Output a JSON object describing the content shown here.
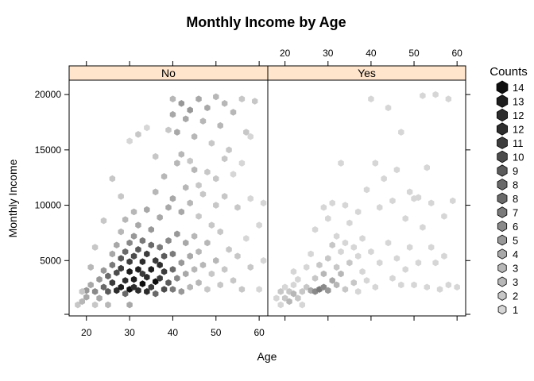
{
  "chart_data": {
    "type": "heatmap",
    "subtype": "hexbin",
    "title": "Monthly Income by Age",
    "xlabel": "Age",
    "ylabel": "Monthly Income",
    "xlim": [
      16,
      62
    ],
    "ylim": [
      0,
      21300
    ],
    "x_ticks": [
      20,
      30,
      40,
      50,
      60
    ],
    "y_ticks": [
      5000,
      10000,
      15000,
      20000
    ],
    "x_tick_labels": [
      "20",
      "30",
      "40",
      "50",
      "60"
    ],
    "y_tick_labels": [
      "5000",
      "10000",
      "15000",
      "20000"
    ],
    "panels": [
      {
        "name": "No",
        "bins": [
          [
            18,
            1000,
            2
          ],
          [
            19,
            1300,
            3
          ],
          [
            20,
            1700,
            4
          ],
          [
            20,
            2300,
            5
          ],
          [
            21,
            2800,
            4
          ],
          [
            22,
            1000,
            2
          ],
          [
            22,
            2200,
            6
          ],
          [
            23,
            3300,
            5
          ],
          [
            23,
            1600,
            4
          ],
          [
            24,
            2600,
            8
          ],
          [
            24,
            4100,
            5
          ],
          [
            25,
            2200,
            9
          ],
          [
            25,
            3600,
            8
          ],
          [
            25,
            1000,
            3
          ],
          [
            26,
            4600,
            7
          ],
          [
            26,
            3000,
            11
          ],
          [
            26,
            5600,
            4
          ],
          [
            27,
            2300,
            12
          ],
          [
            27,
            3900,
            10
          ],
          [
            27,
            6400,
            4
          ],
          [
            28,
            2600,
            13
          ],
          [
            28,
            4300,
            11
          ],
          [
            28,
            5200,
            9
          ],
          [
            28,
            7600,
            3
          ],
          [
            29,
            3200,
            12
          ],
          [
            29,
            2000,
            8
          ],
          [
            29,
            5800,
            8
          ],
          [
            29,
            8700,
            3
          ],
          [
            30,
            2400,
            14
          ],
          [
            30,
            4000,
            13
          ],
          [
            30,
            4900,
            11
          ],
          [
            30,
            6600,
            6
          ],
          [
            30,
            1000,
            4
          ],
          [
            31,
            3300,
            13
          ],
          [
            31,
            2600,
            12
          ],
          [
            31,
            5400,
            10
          ],
          [
            31,
            7200,
            5
          ],
          [
            31,
            9400,
            3
          ],
          [
            32,
            4200,
            13
          ],
          [
            32,
            2300,
            12
          ],
          [
            32,
            6000,
            9
          ],
          [
            32,
            8200,
            4
          ],
          [
            33,
            2900,
            14
          ],
          [
            33,
            4900,
            12
          ],
          [
            33,
            3800,
            11
          ],
          [
            33,
            6800,
            7
          ],
          [
            34,
            2200,
            12
          ],
          [
            34,
            5600,
            11
          ],
          [
            34,
            3500,
            12
          ],
          [
            34,
            9600,
            4
          ],
          [
            35,
            4200,
            13
          ],
          [
            35,
            2600,
            11
          ],
          [
            35,
            6400,
            8
          ],
          [
            35,
            7800,
            5
          ],
          [
            36,
            3100,
            14
          ],
          [
            36,
            5000,
            11
          ],
          [
            36,
            2000,
            8
          ],
          [
            36,
            11200,
            3
          ],
          [
            37,
            4600,
            12
          ],
          [
            37,
            3400,
            11
          ],
          [
            37,
            6200,
            7
          ],
          [
            37,
            8900,
            4
          ],
          [
            38,
            2400,
            10
          ],
          [
            38,
            4000,
            11
          ],
          [
            38,
            5400,
            9
          ],
          [
            38,
            12600,
            3
          ],
          [
            39,
            3000,
            9
          ],
          [
            39,
            6800,
            6
          ],
          [
            39,
            9800,
            4
          ],
          [
            40,
            4200,
            8
          ],
          [
            40,
            2400,
            7
          ],
          [
            40,
            5600,
            7
          ],
          [
            40,
            10600,
            4
          ],
          [
            40,
            18200,
            4
          ],
          [
            40,
            19600,
            3
          ],
          [
            41,
            3400,
            6
          ],
          [
            41,
            7400,
            5
          ],
          [
            41,
            16600,
            4
          ],
          [
            41,
            13800,
            3
          ],
          [
            42,
            4800,
            5
          ],
          [
            42,
            2200,
            5
          ],
          [
            42,
            9400,
            4
          ],
          [
            42,
            19200,
            5
          ],
          [
            43,
            3800,
            4
          ],
          [
            43,
            6600,
            4
          ],
          [
            43,
            17800,
            4
          ],
          [
            43,
            11600,
            3
          ],
          [
            44,
            2600,
            3
          ],
          [
            44,
            5400,
            4
          ],
          [
            44,
            10200,
            3
          ],
          [
            44,
            18600,
            5
          ],
          [
            45,
            4200,
            3
          ],
          [
            45,
            7200,
            3
          ],
          [
            45,
            16200,
            3
          ],
          [
            45,
            13200,
            3
          ],
          [
            46,
            3000,
            3
          ],
          [
            46,
            5800,
            3
          ],
          [
            46,
            19600,
            4
          ],
          [
            46,
            9000,
            2
          ],
          [
            47,
            4600,
            3
          ],
          [
            47,
            11000,
            2
          ],
          [
            47,
            17600,
            3
          ],
          [
            48,
            2400,
            2
          ],
          [
            48,
            6600,
            3
          ],
          [
            48,
            18800,
            4
          ],
          [
            49,
            3800,
            2
          ],
          [
            49,
            8200,
            2
          ],
          [
            49,
            15600,
            2
          ],
          [
            50,
            5000,
            3
          ],
          [
            50,
            19800,
            3
          ],
          [
            50,
            12400,
            2
          ],
          [
            51,
            2800,
            2
          ],
          [
            51,
            7600,
            2
          ],
          [
            51,
            17200,
            3
          ],
          [
            52,
            4200,
            2
          ],
          [
            52,
            10800,
            2
          ],
          [
            52,
            19200,
            3
          ],
          [
            53,
            6000,
            2
          ],
          [
            53,
            15000,
            2
          ],
          [
            54,
            3200,
            2
          ],
          [
            54,
            18400,
            3
          ],
          [
            55,
            5400,
            2
          ],
          [
            55,
            9800,
            2
          ],
          [
            56,
            19600,
            2
          ],
          [
            56,
            2400,
            2
          ],
          [
            57,
            7000,
            1
          ],
          [
            57,
            16600,
            2
          ],
          [
            58,
            4400,
            2
          ],
          [
            58,
            10600,
            1
          ],
          [
            59,
            19400,
            2
          ],
          [
            60,
            2400,
            1
          ],
          [
            60,
            8200,
            1
          ],
          [
            61,
            5000,
            1
          ],
          [
            61,
            10200,
            1
          ],
          [
            42,
            14600,
            3
          ],
          [
            44,
            14000,
            2
          ],
          [
            39,
            16800,
            2
          ],
          [
            48,
            13000,
            2
          ],
          [
            30,
            15800,
            1
          ],
          [
            32,
            16400,
            2
          ],
          [
            34,
            17000,
            1
          ],
          [
            36,
            14400,
            2
          ],
          [
            26,
            12400,
            2
          ],
          [
            28,
            10800,
            2
          ],
          [
            24,
            8600,
            2
          ],
          [
            22,
            6200,
            2
          ],
          [
            21,
            4400,
            3
          ],
          [
            19,
            2200,
            2
          ],
          [
            52,
            14200,
            2
          ],
          [
            54,
            12800,
            1
          ],
          [
            56,
            13800,
            1
          ],
          [
            58,
            16200,
            1
          ],
          [
            46,
            11800,
            2
          ],
          [
            50,
            10000,
            2
          ]
        ]
      },
      {
        "name": "Yes",
        "bins": [
          [
            18,
            1600,
            1
          ],
          [
            19,
            2200,
            2
          ],
          [
            19,
            1000,
            1
          ],
          [
            20,
            2600,
            1
          ],
          [
            20,
            1600,
            2
          ],
          [
            21,
            1300,
            3
          ],
          [
            21,
            2200,
            2
          ],
          [
            22,
            2000,
            3
          ],
          [
            22,
            2800,
            1
          ],
          [
            22,
            4000,
            1
          ],
          [
            23,
            1600,
            2
          ],
          [
            23,
            3300,
            1
          ],
          [
            24,
            2200,
            2
          ],
          [
            24,
            1000,
            1
          ],
          [
            25,
            2600,
            2
          ],
          [
            25,
            4400,
            1
          ],
          [
            26,
            2300,
            4
          ],
          [
            26,
            5600,
            1
          ],
          [
            27,
            2200,
            6
          ],
          [
            27,
            3400,
            2
          ],
          [
            27,
            7800,
            1
          ],
          [
            28,
            2400,
            7
          ],
          [
            28,
            4600,
            2
          ],
          [
            29,
            2600,
            6
          ],
          [
            29,
            3800,
            3
          ],
          [
            29,
            9800,
            1
          ],
          [
            30,
            2300,
            5
          ],
          [
            30,
            5200,
            2
          ],
          [
            30,
            8800,
            1
          ],
          [
            31,
            3200,
            4
          ],
          [
            31,
            6400,
            2
          ],
          [
            31,
            10200,
            1
          ],
          [
            32,
            2800,
            3
          ],
          [
            32,
            4400,
            2
          ],
          [
            32,
            7200,
            1
          ],
          [
            33,
            3800,
            3
          ],
          [
            33,
            13800,
            1
          ],
          [
            33,
            5800,
            1
          ],
          [
            34,
            2400,
            2
          ],
          [
            34,
            6600,
            1
          ],
          [
            34,
            10000,
            1
          ],
          [
            35,
            4800,
            2
          ],
          [
            35,
            8400,
            1
          ],
          [
            36,
            3000,
            2
          ],
          [
            36,
            6200,
            1
          ],
          [
            37,
            2200,
            1
          ],
          [
            37,
            5400,
            1
          ],
          [
            37,
            9400,
            1
          ],
          [
            38,
            4000,
            1
          ],
          [
            38,
            7000,
            1
          ],
          [
            39,
            3200,
            1
          ],
          [
            39,
            11400,
            1
          ],
          [
            40,
            5800,
            1
          ],
          [
            40,
            19600,
            1
          ],
          [
            41,
            2600,
            1
          ],
          [
            41,
            13800,
            1
          ],
          [
            42,
            4800,
            1
          ],
          [
            42,
            9800,
            1
          ],
          [
            43,
            12400,
            1
          ],
          [
            44,
            6600,
            1
          ],
          [
            44,
            18800,
            1
          ],
          [
            45,
            3400,
            1
          ],
          [
            45,
            10400,
            1
          ],
          [
            46,
            5200,
            1
          ],
          [
            46,
            13200,
            1
          ],
          [
            47,
            2800,
            1
          ],
          [
            48,
            8800,
            1
          ],
          [
            48,
            4200,
            1
          ],
          [
            49,
            6200,
            1
          ],
          [
            50,
            10600,
            1
          ],
          [
            50,
            2800,
            1
          ],
          [
            51,
            4800,
            1
          ],
          [
            51,
            10700,
            1
          ],
          [
            52,
            8000,
            1
          ],
          [
            52,
            19900,
            1
          ],
          [
            53,
            2600,
            1
          ],
          [
            54,
            6200,
            1
          ],
          [
            54,
            10200,
            1
          ],
          [
            55,
            4800,
            1
          ],
          [
            55,
            20000,
            1
          ],
          [
            56,
            2400,
            1
          ],
          [
            57,
            9000,
            1
          ],
          [
            58,
            19600,
            1
          ],
          [
            58,
            2800,
            1
          ],
          [
            59,
            10400,
            1
          ],
          [
            60,
            2600,
            1
          ],
          [
            57,
            5400,
            1
          ],
          [
            53,
            13400,
            1
          ],
          [
            49,
            11200,
            1
          ],
          [
            47,
            16600,
            1
          ]
        ]
      }
    ],
    "legend": {
      "title": "Counts",
      "placement": "right",
      "labels": [
        "14",
        "13",
        "12",
        "12",
        "11",
        "10",
        "9",
        "8",
        "8",
        "7",
        "6",
        "5",
        "4",
        "3",
        "3",
        "2",
        "1"
      ]
    }
  }
}
